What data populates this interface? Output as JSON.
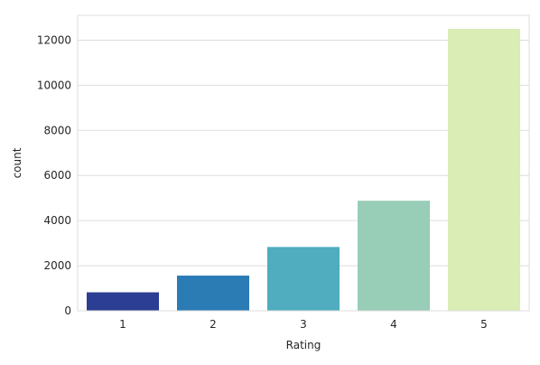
{
  "chart_data": {
    "type": "bar",
    "title": "",
    "xlabel": "Rating",
    "ylabel": "count",
    "categories": [
      "1",
      "2",
      "3",
      "4",
      "5"
    ],
    "values": [
      820,
      1560,
      2830,
      4880,
      12500
    ],
    "colors": [
      "#2c3e93",
      "#2b7bb5",
      "#4fadbf",
      "#98cdb8",
      "#d9edb4"
    ],
    "ylim": [
      0,
      13100
    ],
    "yticks": [
      0,
      2000,
      4000,
      6000,
      8000,
      10000,
      12000
    ],
    "ytick_labels": [
      "0",
      "2000",
      "4000",
      "6000",
      "8000",
      "10000",
      "12000"
    ],
    "grid": "y",
    "grid_color": "#dddddd",
    "frame_color": "#dddddd",
    "legend": "none"
  }
}
